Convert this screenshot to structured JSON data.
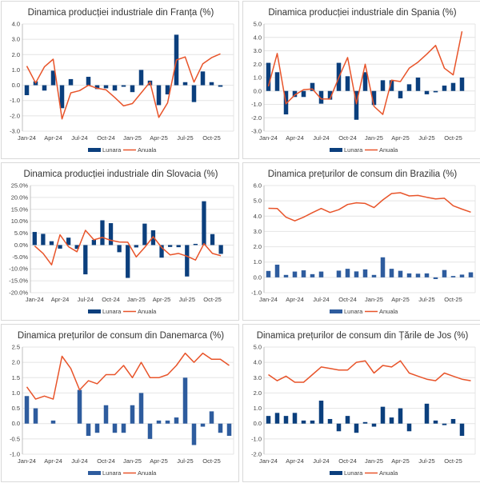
{
  "colors": {
    "bar_dark": "#0b3f7d",
    "bar_mid": "#2e5c9e",
    "line": "#e8542a",
    "grid": "#e4e4e4",
    "axis": "#bfbfbf"
  },
  "chart_data": [
    {
      "id": "france",
      "type": "bar+line",
      "title": "Dinamica producției industriale din Franța (%)",
      "x": [
        "Jan-24",
        "Feb-24",
        "Mar-24",
        "Apr-24",
        "May-24",
        "Jun-24",
        "Jul-24",
        "Aug-24",
        "Sep-24",
        "Oct-24",
        "Nov-24",
        "Dec-24",
        "Jan-25",
        "Feb-25",
        "Mar-25",
        "Apr-25",
        "May-25",
        "Jun-25",
        "Jul-25",
        "Aug-25",
        "Sep-25",
        "Oct-25",
        "Nov-25"
      ],
      "x_tick_labels": [
        "Jan-24",
        "Apr-24",
        "Jul-24",
        "Oct-24",
        "Jan-25",
        "Apr-25",
        "Jul-25",
        "Oct-25"
      ],
      "series": [
        {
          "name": "Lunara",
          "type": "bar",
          "values": [
            -0.65,
            0.25,
            -0.35,
            0.95,
            -1.5,
            0.4,
            0.0,
            0.55,
            -0.25,
            -0.2,
            -0.35,
            -0.1,
            -0.45,
            1.0,
            0.3,
            -1.3,
            -0.6,
            3.3,
            0.2,
            -1.1,
            0.9,
            0.2,
            -0.1
          ]
        },
        {
          "name": "Anuala",
          "type": "line",
          "values": [
            1.25,
            0.15,
            1.2,
            1.7,
            -2.2,
            -0.5,
            -0.35,
            0.0,
            -0.2,
            -0.3,
            -0.8,
            -1.35,
            -1.2,
            -0.5,
            0.2,
            -2.1,
            -1.15,
            1.65,
            1.85,
            0.2,
            1.4,
            1.8,
            2.05
          ]
        }
      ],
      "ylim": [
        -3.0,
        4.0
      ],
      "y_ticks": [
        "-3.0",
        "-2.0",
        "-1.0",
        "0.0",
        "1.0",
        "2.0",
        "3.0",
        "4.0"
      ],
      "y_tick_values": [
        -3,
        -2,
        -1,
        0,
        1,
        2,
        3,
        4
      ],
      "legend": [
        "Lunara",
        "Anuala"
      ],
      "legend_position": "bottom",
      "grid": true
    },
    {
      "id": "spain",
      "type": "bar+line",
      "title": "Dinamica producției industriale din Spania (%)",
      "x": [
        "Jan-24",
        "Feb-24",
        "Mar-24",
        "Apr-24",
        "May-24",
        "Jun-24",
        "Jul-24",
        "Aug-24",
        "Sep-24",
        "Oct-24",
        "Nov-24",
        "Dec-24",
        "Jan-25",
        "Feb-25",
        "Mar-25",
        "Apr-25",
        "May-25",
        "Jun-25",
        "Jul-25",
        "Aug-25",
        "Sep-25",
        "Oct-25",
        "Nov-25"
      ],
      "x_tick_labels": [
        "Jan-24",
        "Apr-24",
        "Jul-24",
        "Oct-24",
        "Jan-25",
        "Apr-25",
        "Jul-25",
        "Oct-25"
      ],
      "series": [
        {
          "name": "Lunara",
          "type": "bar",
          "values": [
            2.1,
            1.4,
            -1.75,
            -0.45,
            -0.45,
            0.6,
            -0.95,
            -0.65,
            2.1,
            1.1,
            -2.15,
            1.4,
            -1.05,
            0.8,
            0.8,
            -0.55,
            0.5,
            1.0,
            -0.25,
            -0.1,
            0.4,
            0.6,
            1.0
          ]
        },
        {
          "name": "Anuala",
          "type": "line",
          "values": [
            0.35,
            2.8,
            -0.95,
            -0.3,
            0.1,
            0.15,
            -0.6,
            -0.6,
            1.0,
            2.5,
            -0.95,
            2.0,
            -1.15,
            -1.75,
            0.8,
            0.7,
            1.7,
            2.15,
            2.75,
            3.4,
            1.7,
            1.2,
            4.45
          ]
        }
      ],
      "ylim": [
        -3.0,
        5.0
      ],
      "y_ticks": [
        "-3.0",
        "-2.0",
        "-1.0",
        "0.0",
        "1.0",
        "2.0",
        "3.0",
        "4.0",
        "5.0"
      ],
      "y_tick_values": [
        -3,
        -2,
        -1,
        0,
        1,
        2,
        3,
        4,
        5
      ],
      "legend": [
        "Lunara",
        "Anuala"
      ],
      "legend_position": "bottom",
      "grid": true
    },
    {
      "id": "slovakia",
      "type": "bar+line",
      "title": "Dinamica producției industriale din Slovacia (%)",
      "x": [
        "Jan-24",
        "Feb-24",
        "Mar-24",
        "Apr-24",
        "May-24",
        "Jun-24",
        "Jul-24",
        "Aug-24",
        "Sep-24",
        "Oct-24",
        "Nov-24",
        "Dec-24",
        "Jan-25",
        "Feb-25",
        "Mar-25",
        "Apr-25",
        "May-25",
        "Jun-25",
        "Jul-25",
        "Aug-25",
        "Sep-25",
        "Oct-25",
        "Nov-25"
      ],
      "x_tick_labels": [
        "Jan-24",
        "Apr-24",
        "Jul-24",
        "Oct-24",
        "Jan-25",
        "Apr-25",
        "Jul-25",
        "Oct-25"
      ],
      "series": [
        {
          "name": "Lunara",
          "type": "bar",
          "values": [
            5.5,
            4.7,
            1.6,
            -1.5,
            3.1,
            -1.6,
            -12.3,
            2.2,
            10.4,
            9.2,
            -3.0,
            -13.8,
            -1.0,
            9.0,
            6.2,
            -5.3,
            -0.8,
            -0.9,
            -13.2,
            0.5,
            18.4,
            4.6,
            -3.7
          ]
        },
        {
          "name": "Anuala",
          "type": "line",
          "values": [
            -0.4,
            -3.5,
            -8.3,
            4.3,
            -0.7,
            -2.8,
            6.2,
            2.2,
            3.2,
            2.0,
            1.3,
            1.2,
            -5.0,
            -1.0,
            3.5,
            -1.0,
            -4.1,
            -3.5,
            -4.7,
            -6.3,
            0.6,
            -3.5,
            -4.5
          ]
        }
      ],
      "ylim": [
        -20.0,
        25.0
      ],
      "y_ticks": [
        "-20.0%",
        "-15.0%",
        "-10.0%",
        "-5.0%",
        "0.0%",
        "5.0%",
        "10.0%",
        "15.0%",
        "20.0%",
        "25.0%"
      ],
      "y_tick_values": [
        -20,
        -15,
        -10,
        -5,
        0,
        5,
        10,
        15,
        20,
        25
      ],
      "legend": [
        "Lunara",
        "Anuala"
      ],
      "legend_position": "bottom",
      "grid": true
    },
    {
      "id": "brazil",
      "type": "bar+line",
      "title": "Dinamica prețurilor de consum din Brazilia (%)",
      "x": [
        "Jan-24",
        "Feb-24",
        "Mar-24",
        "Apr-24",
        "May-24",
        "Jun-24",
        "Jul-24",
        "Aug-24",
        "Sep-24",
        "Oct-24",
        "Nov-24",
        "Dec-24",
        "Jan-25",
        "Feb-25",
        "Mar-25",
        "Apr-25",
        "May-25",
        "Jun-25",
        "Jul-25",
        "Aug-25",
        "Sep-25",
        "Oct-25",
        "Nov-25",
        "Dec-25"
      ],
      "x_tick_labels": [
        "Jan-24",
        "Apr-24",
        "Jul-24",
        "Oct-24",
        "Jan-25",
        "Apr-25",
        "Jul-25",
        "Oct-25"
      ],
      "series": [
        {
          "name": "Lunara",
          "type": "bar",
          "values": [
            0.42,
            0.83,
            0.16,
            0.38,
            0.46,
            0.21,
            0.38,
            0.0,
            0.44,
            0.56,
            0.39,
            0.52,
            0.16,
            1.31,
            0.56,
            0.43,
            0.26,
            0.24,
            0.26,
            -0.11,
            0.48,
            0.09,
            0.18,
            0.33
          ]
        },
        {
          "name": "Anuala",
          "type": "line",
          "values": [
            4.51,
            4.5,
            3.93,
            3.69,
            3.93,
            4.23,
            4.5,
            4.24,
            4.42,
            4.76,
            4.87,
            4.83,
            4.56,
            5.06,
            5.48,
            5.53,
            5.32,
            5.35,
            5.23,
            5.13,
            5.17,
            4.68,
            4.46,
            4.26
          ]
        }
      ],
      "ylim": [
        -1.0,
        6.0
      ],
      "y_ticks": [
        "-1.0",
        "0.0",
        "1.0",
        "2.0",
        "3.0",
        "4.0",
        "5.0",
        "6.0"
      ],
      "y_tick_values": [
        -1,
        0,
        1,
        2,
        3,
        4,
        5,
        6
      ],
      "legend": [
        "Lunara",
        "Anuala"
      ],
      "legend_position": "bottom",
      "grid": true
    },
    {
      "id": "denmark",
      "type": "bar+line",
      "title": "Dinamica prețurilor de consum din Danemarca (%)",
      "x": [
        "Jan-24",
        "Feb-24",
        "Mar-24",
        "Apr-24",
        "May-24",
        "Jun-24",
        "Jul-24",
        "Aug-24",
        "Sep-24",
        "Oct-24",
        "Nov-24",
        "Dec-24",
        "Jan-25",
        "Feb-25",
        "Mar-25",
        "Apr-25",
        "May-25",
        "Jun-25",
        "Jul-25",
        "Aug-25",
        "Sep-25",
        "Oct-25",
        "Nov-25",
        "Dec-25"
      ],
      "x_tick_labels": [
        "Jan-24",
        "Apr-24",
        "Jul-24",
        "Oct-24",
        "Jan-25",
        "Apr-25",
        "Jul-25",
        "Oct-25"
      ],
      "series": [
        {
          "name": "Lunara",
          "type": "bar",
          "values": [
            0.9,
            0.5,
            0.0,
            0.1,
            0.0,
            0.0,
            1.1,
            -0.4,
            -0.3,
            0.6,
            -0.3,
            -0.3,
            0.6,
            1.0,
            -0.5,
            0.1,
            0.1,
            0.2,
            1.5,
            -0.7,
            -0.1,
            0.4,
            -0.3,
            -0.4
          ]
        },
        {
          "name": "Anuala",
          "type": "line",
          "values": [
            1.2,
            0.8,
            0.9,
            0.8,
            2.2,
            1.8,
            1.1,
            1.4,
            1.3,
            1.6,
            1.6,
            1.9,
            1.5,
            2.0,
            1.5,
            1.5,
            1.6,
            1.9,
            2.3,
            2.0,
            2.3,
            2.1,
            2.1,
            1.9
          ]
        }
      ],
      "ylim": [
        -1.0,
        2.5
      ],
      "y_ticks": [
        "-1.0",
        "-0.5",
        "0.0",
        "0.5",
        "1.0",
        "1.5",
        "2.0",
        "2.5"
      ],
      "y_tick_values": [
        -1,
        -0.5,
        0,
        0.5,
        1,
        1.5,
        2,
        2.5
      ],
      "legend": [
        "Lunara",
        "Anuala"
      ],
      "legend_position": "bottom",
      "grid": true
    },
    {
      "id": "netherlands",
      "type": "bar+line",
      "title": "Dinamica prețurilor de consum din Țările de Jos (%)",
      "x": [
        "Jan-24",
        "Feb-24",
        "Mar-24",
        "Apr-24",
        "May-24",
        "Jun-24",
        "Jul-24",
        "Aug-24",
        "Sep-24",
        "Oct-24",
        "Nov-24",
        "Dec-24",
        "Jan-25",
        "Feb-25",
        "Mar-25",
        "Apr-25",
        "May-25",
        "Jun-25",
        "Jul-25",
        "Aug-25",
        "Sep-25",
        "Oct-25",
        "Nov-25",
        "Dec-25"
      ],
      "x_tick_labels": [
        "Jan-24",
        "Apr-24",
        "Jul-24",
        "Oct-24",
        "Jan-25",
        "Apr-25",
        "Jul-25",
        "Oct-25"
      ],
      "series": [
        {
          "name": "Lunara",
          "type": "bar",
          "values": [
            0.5,
            0.7,
            0.5,
            0.7,
            0.2,
            0.2,
            1.5,
            0.3,
            -0.5,
            0.5,
            -0.6,
            0.1,
            -0.2,
            1.1,
            0.4,
            1.0,
            -0.5,
            0.0,
            1.3,
            0.2,
            -0.1,
            0.3,
            -0.8,
            0.0
          ]
        },
        {
          "name": "Anuala",
          "type": "line",
          "values": [
            3.2,
            2.8,
            3.1,
            2.7,
            2.7,
            3.2,
            3.7,
            3.6,
            3.5,
            3.5,
            4.0,
            4.1,
            3.3,
            3.8,
            3.7,
            4.1,
            3.3,
            3.1,
            2.9,
            2.8,
            3.3,
            3.1,
            2.9,
            2.8
          ]
        }
      ],
      "ylim": [
        -2.0,
        5.0
      ],
      "y_ticks": [
        "-2.0",
        "-1.0",
        "0.0",
        "1.0",
        "2.0",
        "3.0",
        "4.0",
        "5.0"
      ],
      "y_tick_values": [
        -2,
        -1,
        0,
        1,
        2,
        3,
        4,
        5
      ],
      "legend": [
        "Lunara",
        "Anuala"
      ],
      "legend_position": "bottom",
      "grid": true
    }
  ]
}
